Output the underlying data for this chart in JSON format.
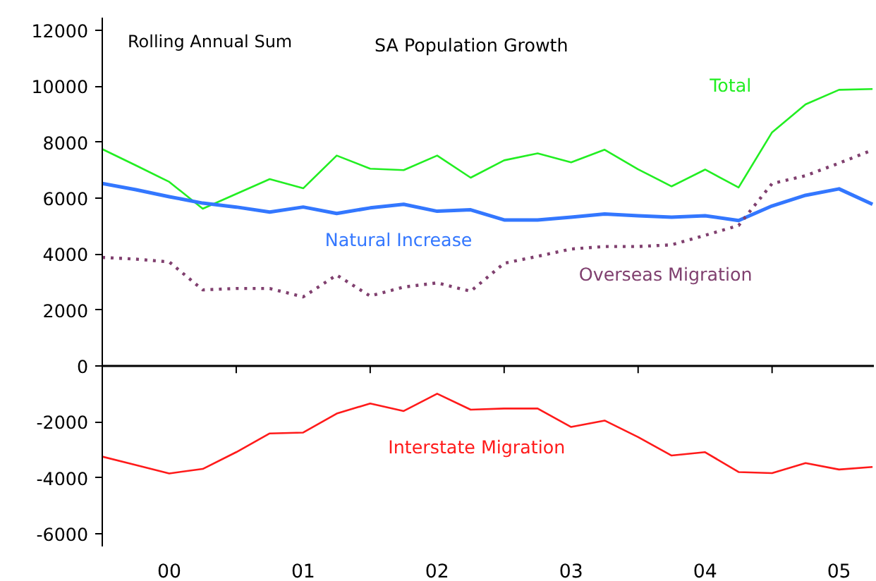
{
  "chart_data": {
    "type": "line",
    "title": "SA Population Growth",
    "annotations": [
      "Rolling Annual Sum"
    ],
    "x": [
      -0.5,
      -0.25,
      0,
      0.25,
      0.5,
      0.75,
      1,
      1.25,
      1.5,
      1.75,
      2,
      2.25,
      2.5,
      2.75,
      3,
      3.25,
      3.5,
      3.75,
      4,
      4.25,
      4.5,
      4.75,
      5,
      5.25
    ],
    "series": [
      {
        "name": "Total",
        "color": "#22ee22",
        "values": [
          7750,
          7170,
          6580,
          5620,
          6150,
          6680,
          6350,
          7520,
          7050,
          7000,
          7520,
          6730,
          7350,
          7600,
          7280,
          7730,
          7030,
          6420,
          7020,
          6380,
          8350,
          9350,
          9870,
          9900
        ]
      },
      {
        "name": "Natural Increase",
        "color": "#3377ff",
        "values": [
          6520,
          6300,
          6050,
          5820,
          5680,
          5500,
          5680,
          5450,
          5650,
          5780,
          5530,
          5580,
          5220,
          5220,
          5320,
          5430,
          5370,
          5320,
          5370,
          5200,
          5720,
          6100,
          6330,
          5780
        ]
      },
      {
        "name": "Overseas Migration",
        "color": "#80406f",
        "line_style": "dotted",
        "values": [
          3880,
          3820,
          3720,
          2720,
          2770,
          2770,
          2470,
          3250,
          2500,
          2820,
          2970,
          2670,
          3670,
          3920,
          4180,
          4270,
          4270,
          4330,
          4670,
          5020,
          6520,
          6800,
          7250,
          7720
        ]
      },
      {
        "name": "Interstate Migration",
        "color": "#ff1a1a",
        "values": [
          -3240,
          -3540,
          -3840,
          -3680,
          -3080,
          -2410,
          -2380,
          -1700,
          -1340,
          -1610,
          -990,
          -1560,
          -1520,
          -1520,
          -2180,
          -1950,
          -2540,
          -3200,
          -3080,
          -3790,
          -3830,
          -3470,
          -3700,
          -3610
        ]
      }
    ],
    "xlim": [
      -0.5,
      5.26
    ],
    "xticks": [
      {
        "value": 0,
        "label": "00"
      },
      {
        "value": 0.5,
        "label": null
      },
      {
        "value": 1,
        "label": "01"
      },
      {
        "value": 1.5,
        "label": null
      },
      {
        "value": 2,
        "label": "02"
      },
      {
        "value": 2.5,
        "label": null
      },
      {
        "value": 3,
        "label": "03"
      },
      {
        "value": 3.5,
        "label": null
      },
      {
        "value": 4,
        "label": "04"
      },
      {
        "value": 4.5,
        "label": null
      },
      {
        "value": 5,
        "label": "05"
      }
    ],
    "ylim": [
      -6450,
      12450
    ],
    "yticks": [
      -6000,
      -4000,
      -2000,
      0,
      2000,
      4000,
      6000,
      8000,
      10000,
      12000
    ],
    "ref_lines": [
      {
        "axis": "y",
        "value": 0,
        "color": "#000000"
      }
    ],
    "grid": false,
    "legend": false
  }
}
